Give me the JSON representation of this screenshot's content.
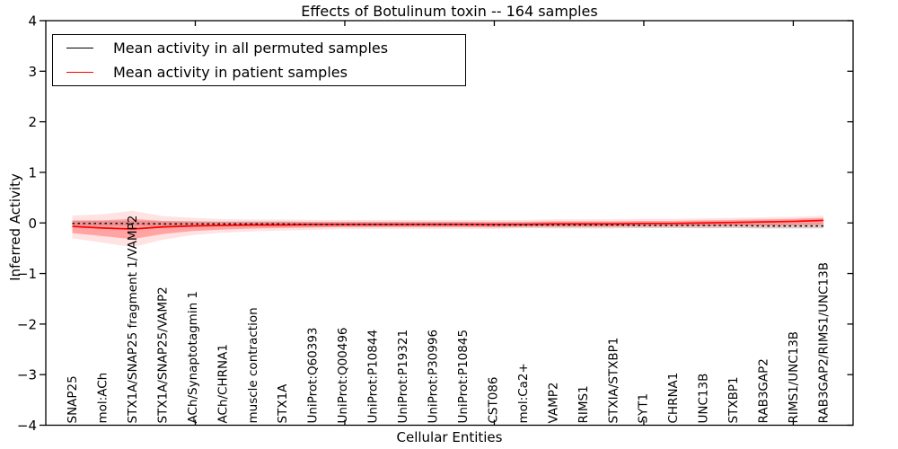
{
  "chart_data": {
    "type": "line",
    "title": "Effects of Botulinum toxin -- 164 samples",
    "xlabel": "Cellular Entities",
    "ylabel": "Inferred Activity",
    "ylim": [
      -4,
      4
    ],
    "yticks": [
      4,
      3,
      2,
      1,
      0,
      -1,
      -2,
      -3,
      -4
    ],
    "ytick_labels": [
      "4",
      "3",
      "2",
      "1",
      "0",
      "−1",
      "−2",
      "−3",
      "−4"
    ],
    "grid": false,
    "legend_position": "upper-left",
    "categories": [
      "SNAP25",
      "mol:ACh",
      "STX1A/SNAP25 fragment 1/VAMP2",
      "STX1A/SNAP25/VAMP2",
      "ACh/Synaptotagmin 1",
      "ACh/CHRNA1",
      "muscle contraction",
      "STX1A",
      "UniProt:Q60393",
      "UniProt:Q00496",
      "UniProt:P10844",
      "UniProt:P19321",
      "UniProt:P30996",
      "UniProt:P10845",
      "CST086",
      "mol:Ca2+",
      "VAMP2",
      "RIMS1",
      "STXIA/STXBP1",
      "SYT1",
      "CHRNA1",
      "UNC13B",
      "STXBP1",
      "RAB3GAP2",
      "RIMS1/UNC13B",
      "RAB3GAP2/RIMS1/UNC13B"
    ],
    "series": [
      {
        "name": "Mean activity in all permuted samples",
        "color": "#000000",
        "line_style": "dashed",
        "band_color": "#999999",
        "band_alpha": 0.3,
        "band_outer": false,
        "values": [
          -0.01,
          -0.01,
          -0.01,
          -0.02,
          -0.02,
          -0.02,
          -0.02,
          -0.02,
          -0.03,
          -0.03,
          -0.03,
          -0.03,
          -0.03,
          -0.03,
          -0.04,
          -0.04,
          -0.04,
          -0.04,
          -0.04,
          -0.05,
          -0.05,
          -0.05,
          -0.05,
          -0.06,
          -0.06,
          -0.06
        ],
        "band_upper": [
          0.04,
          0.04,
          0.04,
          0.03,
          0.03,
          0.03,
          0.03,
          0.03,
          0.02,
          0.02,
          0.02,
          0.02,
          0.02,
          0.02,
          0.01,
          0.01,
          0.01,
          0.01,
          0.01,
          0.0,
          0.0,
          0.0,
          0.0,
          -0.01,
          -0.01,
          -0.01
        ],
        "band_lower": [
          -0.06,
          -0.06,
          -0.06,
          -0.07,
          -0.07,
          -0.07,
          -0.07,
          -0.07,
          -0.08,
          -0.08,
          -0.08,
          -0.08,
          -0.08,
          -0.08,
          -0.09,
          -0.09,
          -0.09,
          -0.09,
          -0.09,
          -0.1,
          -0.1,
          -0.1,
          -0.1,
          -0.11,
          -0.11,
          -0.11
        ]
      },
      {
        "name": "Mean activity in patient samples",
        "color": "#ff0000",
        "line_style": "solid",
        "band_color": "#ff0000",
        "band_alpha": 0.28,
        "band_outer": true,
        "values": [
          -0.07,
          -0.1,
          -0.12,
          -0.08,
          -0.06,
          -0.05,
          -0.04,
          -0.04,
          -0.03,
          -0.03,
          -0.03,
          -0.03,
          -0.03,
          -0.03,
          -0.03,
          -0.03,
          -0.02,
          -0.02,
          -0.02,
          -0.01,
          -0.01,
          0.0,
          0.01,
          0.02,
          0.03,
          0.05
        ],
        "band_upper": [
          0.05,
          0.05,
          0.08,
          0.04,
          0.03,
          0.02,
          0.02,
          0.02,
          0.02,
          0.02,
          0.02,
          0.02,
          0.02,
          0.02,
          0.02,
          0.02,
          0.03,
          0.03,
          0.03,
          0.04,
          0.04,
          0.05,
          0.06,
          0.07,
          0.08,
          0.1
        ],
        "band_lower": [
          -0.2,
          -0.26,
          -0.32,
          -0.22,
          -0.16,
          -0.13,
          -0.11,
          -0.1,
          -0.09,
          -0.08,
          -0.08,
          -0.08,
          -0.08,
          -0.08,
          -0.08,
          -0.07,
          -0.07,
          -0.07,
          -0.07,
          -0.06,
          -0.06,
          -0.06,
          -0.05,
          -0.05,
          -0.04,
          -0.03
        ]
      }
    ]
  }
}
